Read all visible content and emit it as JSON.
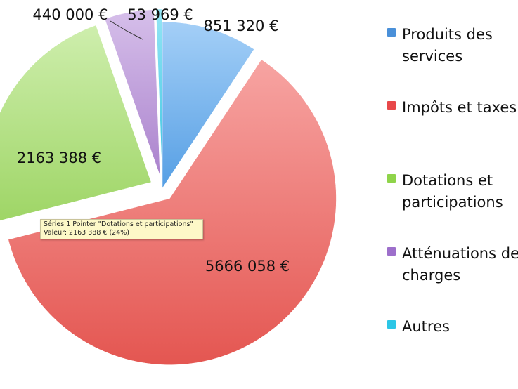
{
  "chart_data": {
    "type": "pie",
    "title": "",
    "slices": [
      {
        "name": "Produits des services",
        "value": 851320,
        "label": "851 320 €",
        "color": "#5aa7f0",
        "explode": false
      },
      {
        "name": "Impôts et taxes",
        "value": 5666058,
        "label": "5666 058 €",
        "color": "#f05a55",
        "explode": true
      },
      {
        "name": "Dotations et participations",
        "value": 2163388,
        "label": "2163 388 €",
        "color": "#a6e06a",
        "explode": true
      },
      {
        "name": "Atténuations de charges",
        "value": 440000,
        "label": "440 000 €",
        "color": "#b48ad8",
        "explode": true
      },
      {
        "name": "Autres",
        "value": 53969,
        "label": "53 969 €",
        "color": "#3fd0ec",
        "explode": true
      }
    ],
    "legend_position": "right"
  },
  "legend": {
    "items": [
      {
        "label": "Produits des services",
        "color": "#4a90d9"
      },
      {
        "label": "Impôts et taxes",
        "color": "#e8484a"
      },
      {
        "label": "Dotations et participations",
        "color": "#8fd44a"
      },
      {
        "label": "Atténuations de charges",
        "color": "#9d6fcb"
      },
      {
        "label": "Autres",
        "color": "#2cc6e6"
      }
    ]
  },
  "tooltip": {
    "line1": "Séries 1 Pointer \"Dotations et participations\"",
    "line2": "Valeur: 2163 388 € (24%)"
  }
}
